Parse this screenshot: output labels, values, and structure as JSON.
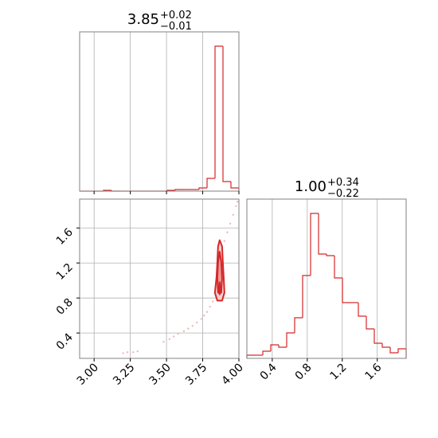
{
  "chart_data": {
    "type": "corner",
    "color": "#d62728",
    "grid": true,
    "params": [
      {
        "title": {
          "value": "3.85",
          "plus": "+0.02",
          "minus": "−0.01"
        },
        "lim": [
          2.9,
          4.0
        ],
        "ticks": [
          {
            "value": 3,
            "label": "3.00"
          },
          {
            "value": 3.25,
            "label": "3.25"
          },
          {
            "value": 3.5,
            "label": "3.50"
          },
          {
            "value": 3.75,
            "label": "3.75"
          },
          {
            "value": 4,
            "label": "4.00"
          }
        ],
        "bins": [
          2.9,
          2.955,
          3.01,
          3.065,
          3.12,
          3.175,
          3.23,
          3.285,
          3.34,
          3.395,
          3.45,
          3.505,
          3.56,
          3.615,
          3.67,
          3.725,
          3.78,
          3.835,
          3.89,
          3.945,
          4.0
        ],
        "counts": [
          0,
          0,
          0,
          1,
          0,
          0,
          0,
          0,
          0,
          0,
          0,
          1,
          2,
          2,
          2,
          4,
          16,
          182,
          12,
          4
        ],
        "count_lim": [
          0,
          200
        ]
      },
      {
        "title": {
          "value": "1.00",
          "plus": "+0.34",
          "minus": "−0.22"
        },
        "lim": [
          0.11,
          1.93
        ],
        "ticks": [
          0.4,
          0.8,
          1.2,
          1.6
        ],
        "bins": [
          0.11,
          0.201,
          0.292,
          0.383,
          0.474,
          0.565,
          0.656,
          0.747,
          0.838,
          0.929,
          1.02,
          1.111,
          1.202,
          1.293,
          1.384,
          1.475,
          1.566,
          1.657,
          1.748,
          1.839,
          1.93
        ],
        "counts": [
          4,
          4,
          9,
          17,
          14,
          32,
          51,
          104,
          182,
          131,
          129,
          101,
          70,
          70,
          53,
          37,
          19,
          14,
          7,
          12
        ],
        "count_lim": [
          0,
          200
        ]
      }
    ],
    "samples": {
      "color": "#f2b8b8",
      "x": [
        3.2,
        3.23,
        3.27,
        3.3,
        3.48,
        3.52,
        3.55,
        3.58,
        3.62,
        3.65,
        3.68,
        3.71,
        3.74,
        3.76,
        3.78,
        3.8,
        3.82,
        3.9,
        3.92,
        3.94,
        3.96,
        3.98,
        3.99
      ],
      "y": [
        0.17,
        0.18,
        0.18,
        0.19,
        0.3,
        0.33,
        0.36,
        0.39,
        0.42,
        0.45,
        0.48,
        0.52,
        0.56,
        0.6,
        0.64,
        0.7,
        0.76,
        1.45,
        1.55,
        1.65,
        1.75,
        1.85,
        1.9
      ]
    },
    "contours": [
      {
        "fill": "#f6d0d0",
        "x": [
          3.867,
          3.884,
          3.889,
          3.895,
          3.9,
          3.884,
          3.851,
          3.834,
          3.845,
          3.851,
          3.856
        ],
        "y": [
          1.46,
          1.39,
          1.21,
          1.03,
          0.86,
          0.77,
          0.77,
          0.86,
          1.03,
          1.21,
          1.39
        ]
      },
      {
        "fill": "#ec9a9a",
        "x": [
          3.867,
          3.878,
          3.884,
          3.878,
          3.856,
          3.851,
          3.856
        ],
        "y": [
          1.33,
          1.21,
          1.03,
          0.86,
          0.86,
          1.03,
          1.21
        ]
      },
      {
        "fill": "#e06060",
        "x": [
          3.867,
          3.873,
          3.867,
          3.862
        ],
        "y": [
          0.98,
          0.9,
          0.84,
          0.9
        ]
      }
    ]
  }
}
